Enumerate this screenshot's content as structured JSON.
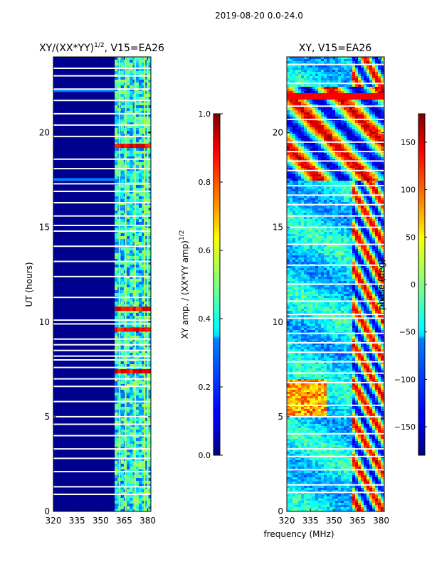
{
  "figure": {
    "suptitle": "2019-08-20 0.0-24.0",
    "xlabel": "frequency (MHz)"
  },
  "chart_data": [
    {
      "type": "heatmap",
      "title": "XY/(XX*YY)",
      "title_exponent": "1/2",
      "title_suffix": ", V15=EA26",
      "xlabel": "",
      "ylabel": "UT (hours)",
      "xlim": [
        320,
        382
      ],
      "ylim": [
        0,
        24
      ],
      "xticks": [
        320,
        335,
        350,
        365,
        380
      ],
      "yticks": [
        0,
        5,
        10,
        15,
        20
      ],
      "colorbar": {
        "label": "XY amp. / (XX*YY amp)",
        "label_exponent": "1/2",
        "min": 0.0,
        "max": 1.0,
        "ticks": [
          "0.0",
          "0.2",
          "0.4",
          "0.6",
          "0.8",
          "1.0"
        ],
        "colormap": "jet"
      },
      "active_band_mhz": [
        359,
        382
      ],
      "active_channels_mhz": [
        362,
        366,
        372,
        378,
        380
      ],
      "high_rows_ut": [
        10.7,
        9.6,
        19.3,
        7.4
      ],
      "flagged_rows_ut": [
        0.9,
        1.3,
        2.1,
        2.8,
        3.3,
        4.0,
        4.6,
        5.0,
        5.8,
        6.6,
        7.0,
        7.6,
        8.0,
        8.2,
        8.5,
        8.8,
        9.1,
        9.9,
        10.1,
        11.3,
        12.4,
        13.2,
        14.0,
        14.8,
        15.1,
        15.6,
        16.3,
        16.9,
        17.3,
        18.1,
        18.6,
        19.8,
        20.4,
        21.0,
        21.7,
        22.3,
        23.0,
        23.4
      ]
    },
    {
      "type": "heatmap",
      "title": "XY, V15=EA26",
      "xlabel": "",
      "ylabel": "",
      "xlim": [
        320,
        382
      ],
      "ylim": [
        0,
        24
      ],
      "xticks": [
        320,
        335,
        350,
        365,
        380
      ],
      "yticks": [
        0,
        5,
        10,
        15,
        20
      ],
      "colorbar": {
        "label": "phase (deg)",
        "min": -180,
        "max": 180,
        "ticks": [
          "−150",
          "−100",
          "−50",
          "0",
          "50",
          "100",
          "150"
        ],
        "tick_values": [
          -150,
          -100,
          -50,
          0,
          50,
          100,
          150
        ],
        "colormap": "jet"
      },
      "flagged_rows_ut": [
        1.0,
        1.4,
        2.2,
        2.9,
        3.3,
        4.1,
        5.0,
        5.6,
        6.8,
        7.3,
        7.9,
        8.4,
        8.9,
        9.4,
        10.2,
        10.4,
        11.1,
        12.0,
        13.0,
        14.1,
        15.0,
        15.6,
        16.2,
        16.7,
        17.2,
        18.0,
        18.5,
        19.0,
        19.5,
        20.7,
        21.4,
        22.6,
        23.6
      ]
    }
  ]
}
